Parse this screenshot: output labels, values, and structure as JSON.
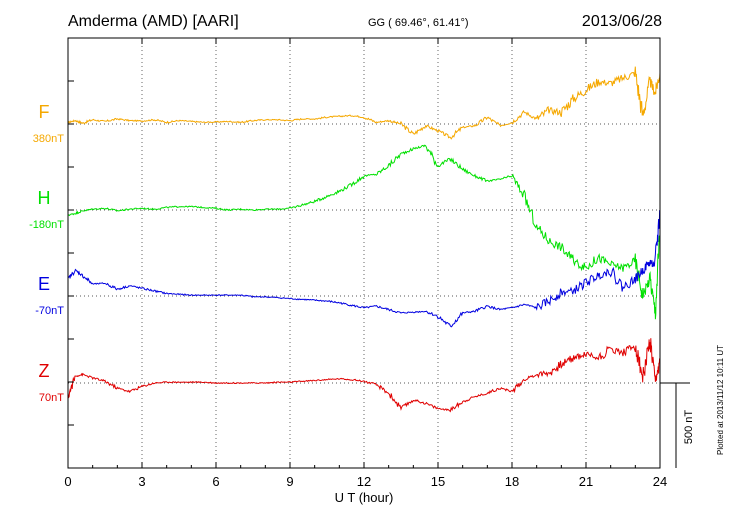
{
  "header": {
    "station": "Amderma (AMD)  [AARI]",
    "coords": "GG ( 69.46°,  61.41°)",
    "date": "2013/06/28"
  },
  "footer": {
    "plotted": "Plotted at 2013/11/12 10:11  UT",
    "scale_label": "500 nT"
  },
  "chart_data": {
    "type": "line",
    "xlabel": "U T (hour)",
    "xlim": [
      0,
      24
    ],
    "xticks": [
      "0",
      "3",
      "6",
      "9",
      "12",
      "15",
      "18",
      "21",
      "24"
    ],
    "scale_bar_nT": 500,
    "grid": true,
    "series": [
      {
        "name": "F",
        "baseline_label": "380nT",
        "color": "#f5a800",
        "x": [
          0,
          0.3,
          0.6,
          1,
          1.5,
          2,
          2.5,
          3,
          3.5,
          4,
          4.5,
          5,
          5.5,
          6,
          6.5,
          7,
          7.5,
          8,
          8.5,
          9,
          9.5,
          10,
          10.5,
          11,
          11.5,
          12,
          12.5,
          13,
          13.5,
          14,
          14.5,
          15,
          15.5,
          16,
          16.5,
          17,
          17.5,
          18,
          18.5,
          19,
          19.5,
          20,
          20.5,
          21,
          21.5,
          22,
          22.5,
          23,
          23.3,
          23.6,
          23.8,
          24
        ],
        "values": [
          10,
          20,
          5,
          25,
          15,
          30,
          20,
          18,
          25,
          10,
          20,
          15,
          10,
          12,
          15,
          10,
          20,
          25,
          25,
          20,
          30,
          30,
          40,
          45,
          50,
          40,
          10,
          20,
          0,
          -60,
          -10,
          -40,
          -80,
          -20,
          -10,
          40,
          -10,
          10,
          70,
          30,
          80,
          70,
          150,
          200,
          250,
          240,
          270,
          300,
          50,
          250,
          180,
          300
        ]
      },
      {
        "name": "H",
        "baseline_label": "-180nT",
        "color": "#00e000",
        "x": [
          0,
          0.3,
          0.6,
          1,
          1.5,
          2,
          2.5,
          3,
          3.5,
          4,
          4.5,
          5,
          5.5,
          6,
          6.5,
          7,
          7.5,
          8,
          8.5,
          9,
          9.5,
          10,
          10.5,
          11,
          11.5,
          12,
          12.5,
          13,
          13.5,
          14,
          14.5,
          15,
          15.5,
          16,
          16.5,
          17,
          17.5,
          18,
          18.5,
          19,
          19.5,
          20,
          20.5,
          21,
          21.5,
          22,
          22.5,
          23,
          23.3,
          23.6,
          23.8,
          24
        ],
        "values": [
          -30,
          -20,
          -5,
          5,
          10,
          -5,
          5,
          10,
          5,
          15,
          20,
          20,
          15,
          10,
          0,
          5,
          0,
          5,
          5,
          10,
          30,
          50,
          80,
          110,
          150,
          200,
          210,
          260,
          330,
          360,
          380,
          260,
          300,
          240,
          200,
          170,
          180,
          200,
          80,
          -100,
          -180,
          -220,
          -300,
          -340,
          -280,
          -320,
          -340,
          -300,
          -500,
          -400,
          -600,
          -140
        ]
      },
      {
        "name": "E",
        "baseline_label": "-70nT",
        "color": "#0000e0",
        "x": [
          0,
          0.3,
          0.6,
          1,
          1.5,
          2,
          2.5,
          3,
          3.5,
          4,
          4.5,
          5,
          5.5,
          6,
          6.5,
          7,
          7.5,
          8,
          8.5,
          9,
          9.5,
          10,
          10.5,
          11,
          11.5,
          12,
          12.5,
          13,
          13.5,
          14,
          14.5,
          15,
          15.5,
          16,
          16.5,
          17,
          17.5,
          18,
          18.5,
          19,
          19.5,
          20,
          20.5,
          21,
          21.5,
          22,
          22.5,
          23,
          23.3,
          23.6,
          23.8,
          24
        ],
        "values": [
          100,
          150,
          120,
          70,
          75,
          40,
          60,
          45,
          30,
          15,
          10,
          5,
          5,
          5,
          5,
          5,
          -5,
          -5,
          -10,
          -15,
          -20,
          -25,
          -30,
          -40,
          -55,
          -70,
          -60,
          -80,
          -100,
          -95,
          -90,
          -120,
          -180,
          -100,
          -90,
          -60,
          -80,
          -70,
          -50,
          -70,
          -30,
          20,
          30,
          80,
          120,
          150,
          50,
          100,
          150,
          200,
          180,
          500
        ]
      },
      {
        "name": "Z",
        "baseline_label": "70nT",
        "color": "#e00000",
        "x": [
          0,
          0.3,
          0.6,
          1,
          1.5,
          2,
          2.5,
          3,
          3.5,
          4,
          4.5,
          5,
          5.5,
          6,
          6.5,
          7,
          7.5,
          8,
          8.5,
          9,
          9.5,
          10,
          10.5,
          11,
          11.5,
          12,
          12.5,
          13,
          13.5,
          14,
          14.5,
          15,
          15.5,
          16,
          16.5,
          17,
          17.5,
          18,
          18.5,
          19,
          19.5,
          20,
          20.5,
          21,
          21.5,
          22,
          22.5,
          23,
          23.3,
          23.6,
          23.8,
          24
        ],
        "values": [
          -80,
          40,
          50,
          30,
          10,
          -30,
          -50,
          -20,
          0,
          5,
          5,
          5,
          5,
          0,
          0,
          0,
          0,
          0,
          5,
          5,
          10,
          15,
          20,
          25,
          20,
          10,
          -10,
          -60,
          -150,
          -100,
          -120,
          -150,
          -160,
          -110,
          -80,
          -60,
          -30,
          -50,
          20,
          50,
          60,
          110,
          150,
          170,
          150,
          200,
          180,
          220,
          30,
          240,
          0,
          120
        ]
      }
    ]
  }
}
